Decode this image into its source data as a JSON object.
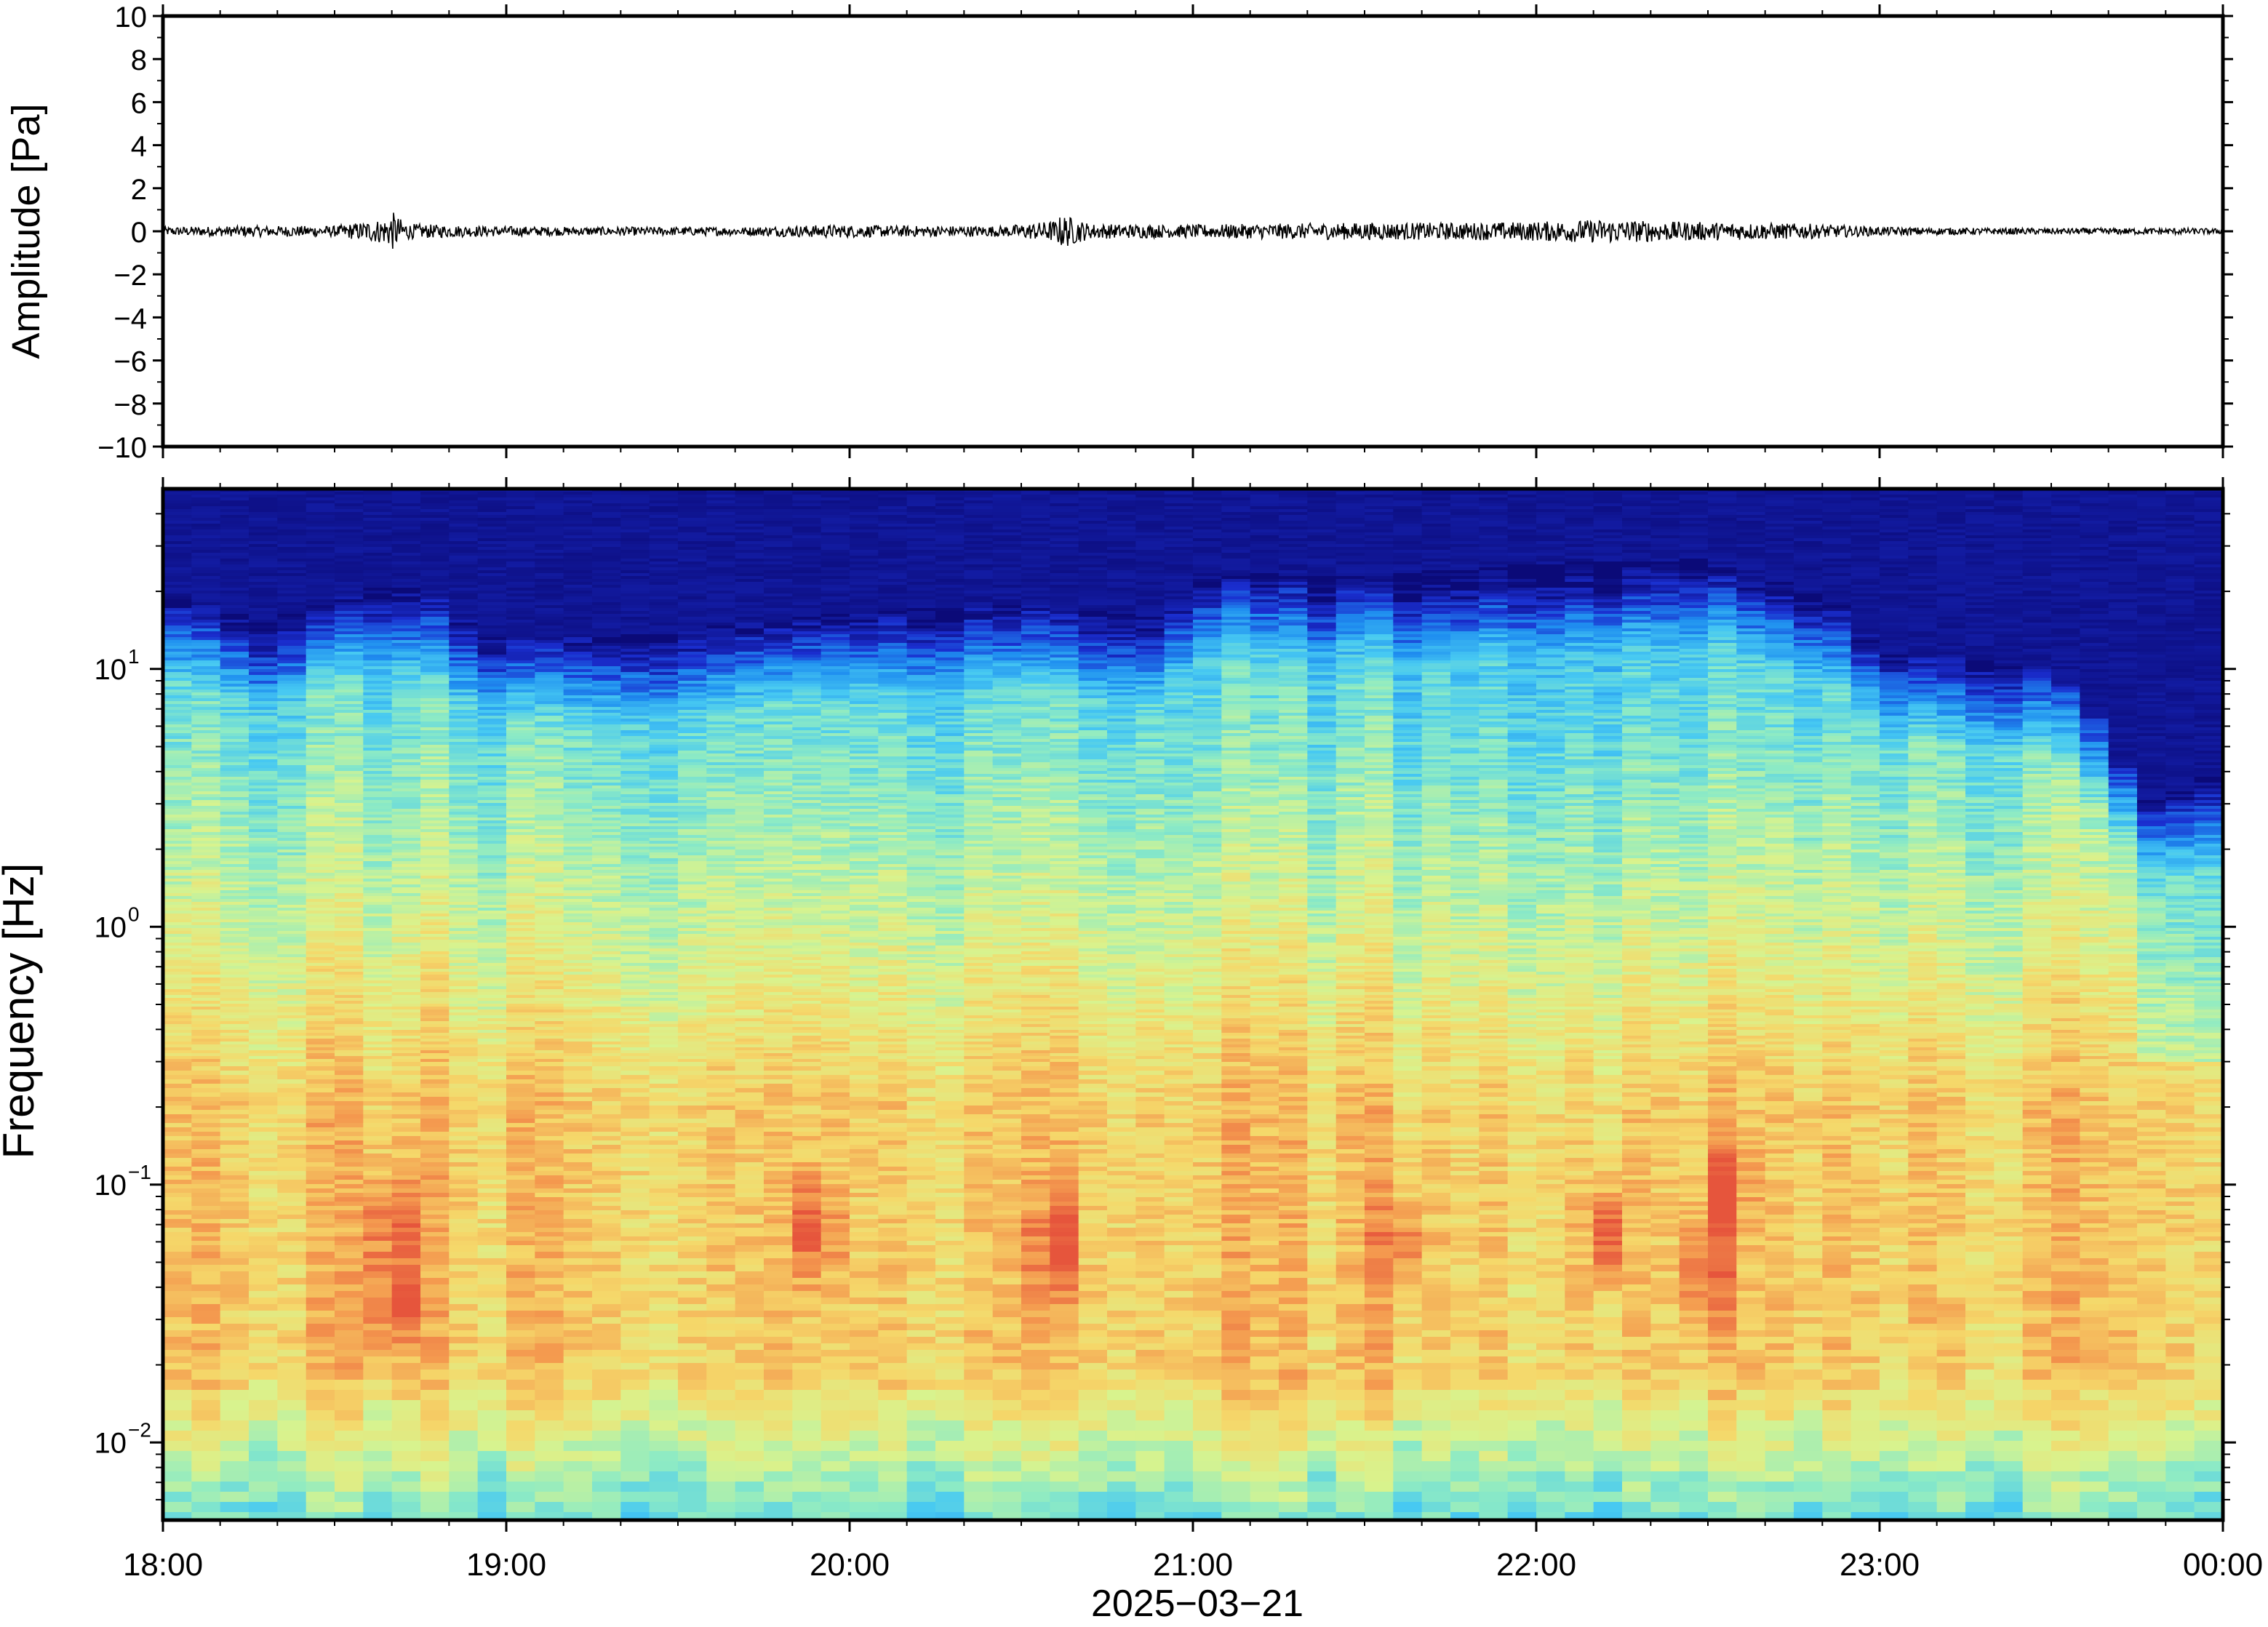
{
  "chart_data": [
    {
      "type": "line",
      "panel": "waveform",
      "title": "",
      "xlabel": "",
      "ylabel": "Amplitude [Pa]",
      "ylim": [
        -10,
        10
      ],
      "yticks": [
        "10",
        "8",
        "6",
        "4",
        "2",
        "0",
        "−2",
        "−4",
        "−6",
        "−8",
        "−10"
      ],
      "ytick_values": [
        10,
        8,
        6,
        4,
        2,
        0,
        -2,
        -4,
        -6,
        -8,
        -10
      ],
      "xlim": [
        "18:00",
        "00:00"
      ],
      "series": [
        {
          "color": "#000000",
          "x_hours": [
            18.0,
            18.25,
            18.5,
            18.65,
            18.67,
            18.69,
            18.72,
            18.9,
            19.2,
            19.5,
            19.7,
            19.93,
            20.2,
            20.45,
            20.6,
            20.62,
            20.7,
            20.95,
            21.2,
            21.5,
            21.8,
            22.0,
            22.1,
            22.2,
            22.4,
            22.6,
            22.8,
            23.0,
            23.3,
            23.6,
            23.9,
            24.0
          ],
          "envelope": [
            0.2,
            0.25,
            0.25,
            0.6,
            0.9,
            0.6,
            0.35,
            0.25,
            0.2,
            0.2,
            0.2,
            0.3,
            0.25,
            0.25,
            0.5,
            0.8,
            0.35,
            0.3,
            0.35,
            0.4,
            0.4,
            0.45,
            0.5,
            0.55,
            0.45,
            0.4,
            0.35,
            0.2,
            0.15,
            0.15,
            0.15,
            0.12
          ]
        }
      ]
    },
    {
      "type": "heatmap",
      "panel": "spectrogram",
      "title": "",
      "xlabel": "2025−03−21",
      "ylabel": "Frequency [Hz]",
      "yscale": "log",
      "ylim": [
        0.005,
        50
      ],
      "yticks": [
        {
          "value": 10,
          "base": "10",
          "exp": "1"
        },
        {
          "value": 1,
          "base": "10",
          "exp": "0"
        },
        {
          "value": 0.1,
          "base": "10",
          "exp": "−1"
        },
        {
          "value": 0.01,
          "base": "10",
          "exp": "−2"
        }
      ],
      "xticks": [
        "18:00",
        "19:00",
        "20:00",
        "21:00",
        "22:00",
        "23:00",
        "00:00"
      ],
      "colormap": [
        "#0b0a78",
        "#1a2ecf",
        "#1f8ff0",
        "#47c9f2",
        "#8eebc4",
        "#d8f38e",
        "#f5d86a",
        "#f49a4f",
        "#e6553c"
      ],
      "high_frequency_cutoff_hz": [
        {
          "hour": 18.0,
          "hz": 20
        },
        {
          "hour": 18.3,
          "hz": 15
        },
        {
          "hour": 18.67,
          "hz": 22
        },
        {
          "hour": 19.0,
          "hz": 13
        },
        {
          "hour": 19.5,
          "hz": 14
        },
        {
          "hour": 20.0,
          "hz": 17
        },
        {
          "hour": 20.5,
          "hz": 18
        },
        {
          "hour": 20.9,
          "hz": 16
        },
        {
          "hour": 21.0,
          "hz": 24
        },
        {
          "hour": 21.5,
          "hz": 23
        },
        {
          "hour": 22.0,
          "hz": 26
        },
        {
          "hour": 22.5,
          "hz": 27
        },
        {
          "hour": 22.85,
          "hz": 19
        },
        {
          "hour": 23.0,
          "hz": 12
        },
        {
          "hour": 23.5,
          "hz": 10
        },
        {
          "hour": 23.75,
          "hz": 3
        },
        {
          "hour": 24.0,
          "hz": 4
        }
      ],
      "energy_peaks": [
        {
          "hour": 18.67,
          "hz": 0.035,
          "level": 1.0
        },
        {
          "hour": 18.67,
          "hz": 0.075,
          "level": 0.9
        },
        {
          "hour": 19.9,
          "hz": 0.07,
          "level": 0.8
        },
        {
          "hour": 20.6,
          "hz": 0.06,
          "level": 0.8
        },
        {
          "hour": 21.6,
          "hz": 0.06,
          "level": 0.75
        },
        {
          "hour": 22.2,
          "hz": 0.065,
          "level": 0.8
        },
        {
          "hour": 22.5,
          "hz": 0.05,
          "level": 0.85
        },
        {
          "hour": 22.55,
          "hz": 0.1,
          "level": 0.75
        }
      ]
    }
  ]
}
